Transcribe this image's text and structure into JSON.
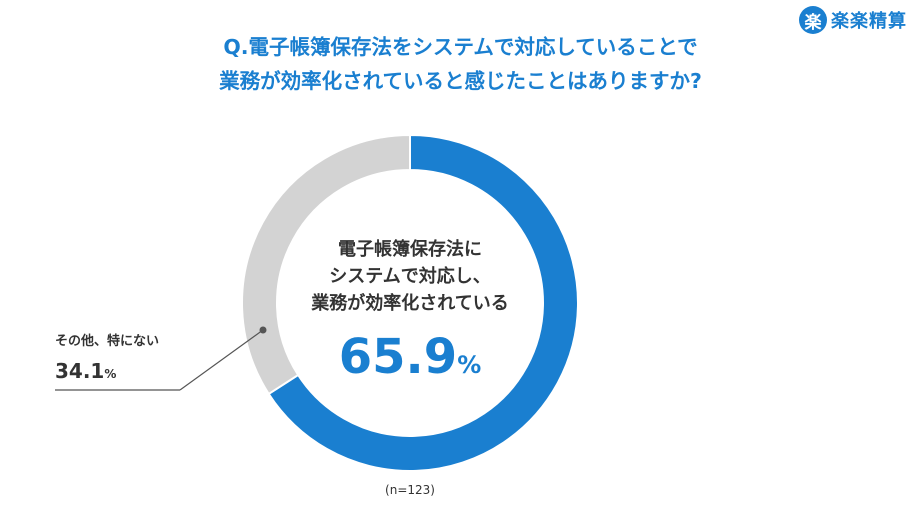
{
  "logo": {
    "mark": "楽",
    "text": "楽楽精算",
    "color": "#1a7fd0"
  },
  "title": {
    "line1": "Q.電子帳簿保存法をシステムで対応していることで",
    "line2": "業務が効率化されていると感じたことはありますか?"
  },
  "chart_data": {
    "type": "pie",
    "variant": "donut",
    "categories": [
      "電子帳簿保存法にシステムで対応し、業務が効率化されている",
      "その他、特にない"
    ],
    "values": [
      65.9,
      34.1
    ],
    "unit": "%",
    "colors": [
      "#1a7fd0",
      "#d3d3d3"
    ],
    "center_label_lines": [
      "電子帳簿保存法に",
      "システムで対応し、",
      "業務が効率化されている"
    ],
    "center_value": "65.9",
    "center_unit": "%",
    "other_label": "その他、特にない",
    "other_value": "34.1",
    "other_unit": "%",
    "sample_note": "(n=123)"
  }
}
